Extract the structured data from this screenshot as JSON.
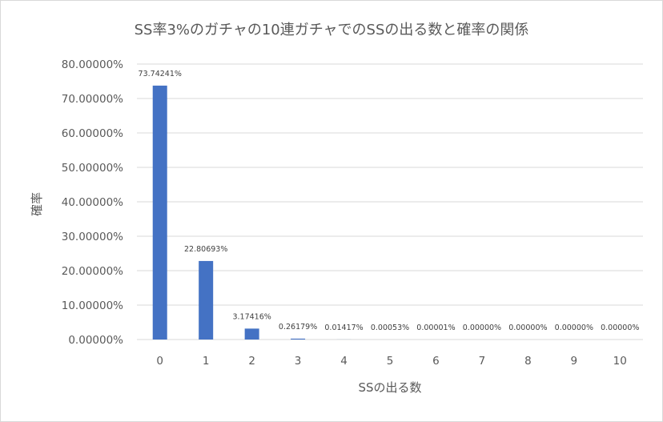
{
  "chart_data": {
    "type": "bar",
    "title": "SS率3%のガチャの10連ガチャでのSSの出る数と確率の関係",
    "xlabel": "SSの出る数",
    "ylabel": "確率",
    "categories": [
      "0",
      "1",
      "2",
      "3",
      "4",
      "5",
      "6",
      "7",
      "8",
      "9",
      "10"
    ],
    "values": [
      73.74241,
      22.80693,
      3.17416,
      0.26179,
      0.01417,
      0.00053,
      1e-05,
      0.0,
      0.0,
      0.0,
      0.0
    ],
    "data_labels": [
      "73.74241%",
      "22.80693%",
      "3.17416%",
      "0.26179%",
      "0.01417%",
      "0.00053%",
      "0.00001%",
      "0.00000%",
      "0.00000%",
      "0.00000%",
      "0.00000%"
    ],
    "ylim": [
      0,
      80
    ],
    "y_ticks": [
      0,
      10,
      20,
      30,
      40,
      50,
      60,
      70,
      80
    ],
    "y_tick_labels": [
      "0.00000%",
      "10.00000%",
      "20.00000%",
      "30.00000%",
      "40.00000%",
      "50.00000%",
      "60.00000%",
      "70.00000%",
      "80.00000%"
    ],
    "grid": true,
    "legend": "none",
    "colors": {
      "bar": "#4472c4",
      "grid": "#d9d9d9",
      "text": "#595959",
      "label": "#404040"
    }
  }
}
